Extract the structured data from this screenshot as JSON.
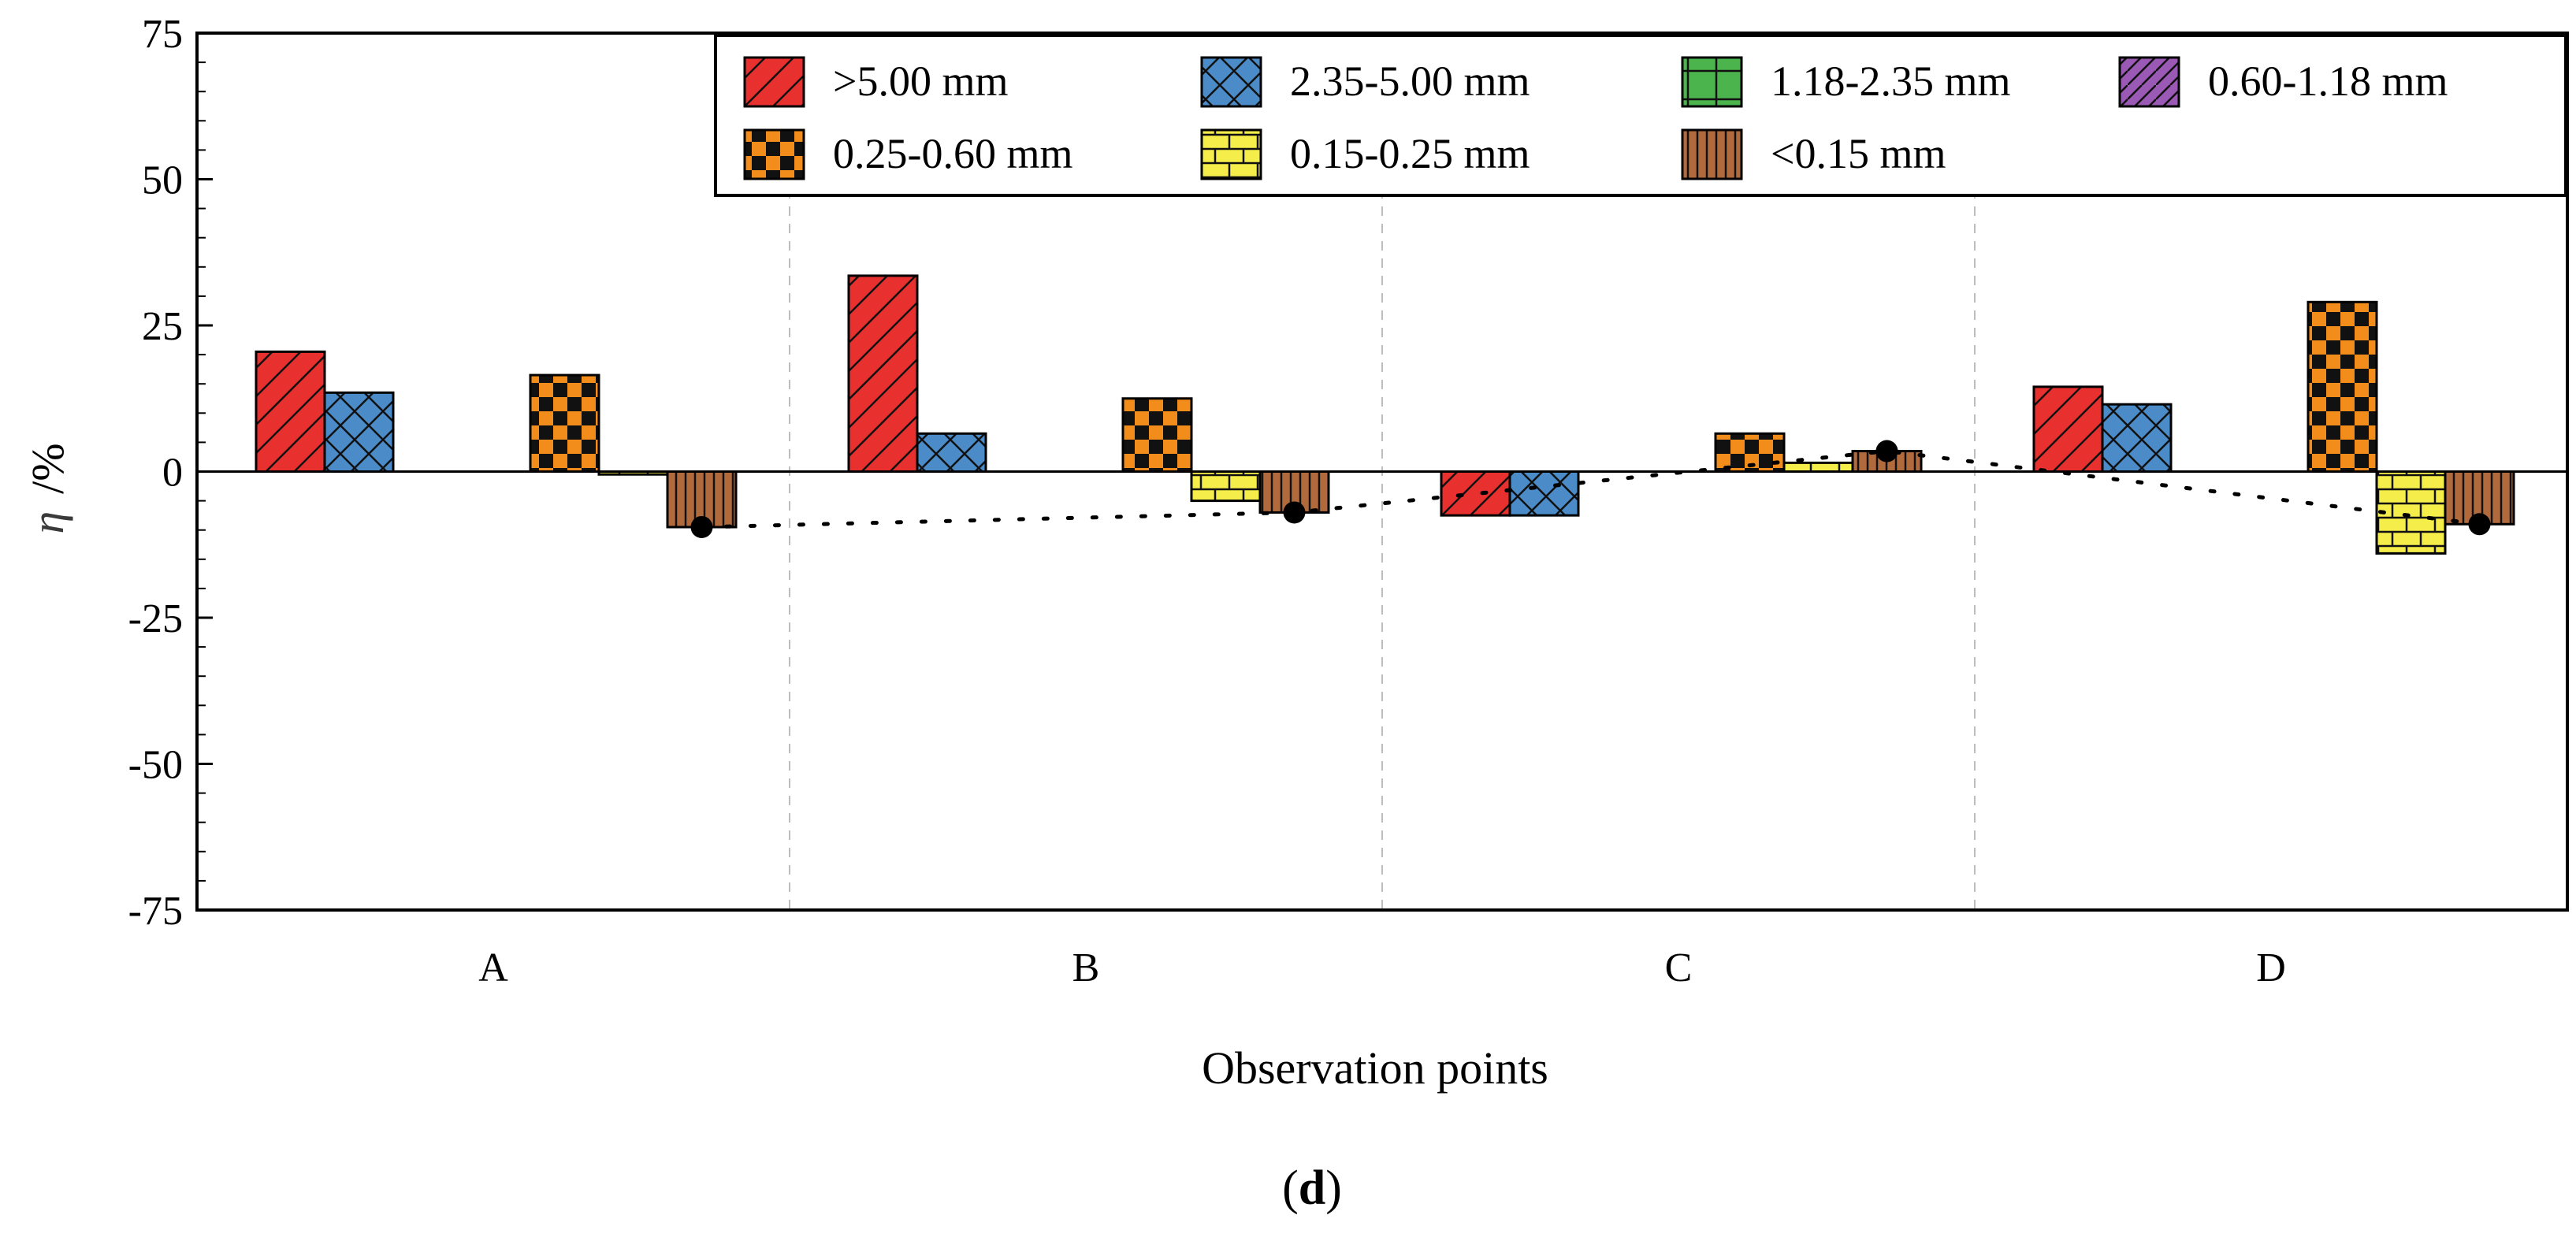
{
  "chart_data": {
    "type": "bar",
    "xlabel": "Observation points",
    "ylabel_symbol": "η",
    "ylabel_unit": "/%",
    "ylim": [
      -75,
      75
    ],
    "yticks": [
      "75",
      "50",
      "25",
      "0",
      "-25",
      "-50",
      "-75"
    ],
    "ytick_values": [
      75,
      50,
      25,
      0,
      -25,
      -50,
      -75
    ],
    "categories": [
      "A",
      "B",
      "C",
      "D"
    ],
    "panel_label": "d",
    "legend_position": "top-right",
    "series": [
      {
        "name": ">5.00 mm",
        "color": "#e8302f",
        "pattern": "diag",
        "values": [
          20.5,
          33.5,
          -7.5,
          14.5
        ]
      },
      {
        "name": "2.35-5.00 mm",
        "color": "#4a8bc8",
        "pattern": "cross",
        "values": [
          13.5,
          6.5,
          -7.5,
          11.5
        ]
      },
      {
        "name": "1.18-2.35 mm",
        "color": "#4cb44c",
        "pattern": "grid",
        "values": [
          0,
          0,
          0,
          0
        ]
      },
      {
        "name": "0.60-1.18 mm",
        "color": "#9b59b6",
        "pattern": "xhatch",
        "values": [
          0,
          0,
          0,
          0
        ]
      },
      {
        "name": "0.25-0.60 mm",
        "color": "#f28c1a",
        "pattern": "checker",
        "values": [
          16.5,
          12.5,
          6.5,
          29
        ]
      },
      {
        "name": "0.15-0.25 mm",
        "color": "#f5ee4a",
        "pattern": "brick",
        "values": [
          -0.5,
          -5,
          1.5,
          -14
        ]
      },
      {
        "name": "<0.15 mm",
        "color": "#b06a3c",
        "pattern": "vlines",
        "values": [
          -9.5,
          -7,
          3.5,
          -9
        ]
      }
    ],
    "trend_line": {
      "series": "<0.15 mm",
      "values": [
        -9.5,
        -7,
        3.5,
        -9
      ],
      "style": "dotted"
    }
  }
}
